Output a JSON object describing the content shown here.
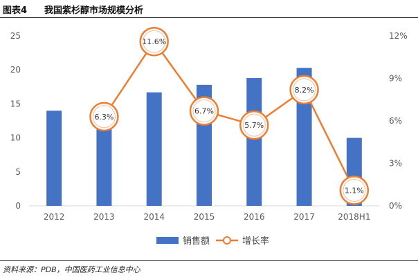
{
  "header": {
    "figure_label": "图表4",
    "title": "我国紫杉醇市场规模分析"
  },
  "footer": {
    "source": "资料来源：PDB，中国医药工业信息中心"
  },
  "colors": {
    "bar": "#4472c4",
    "line": "#ed7d31",
    "axis_text": "#595959",
    "axis_line": "#d9d9d9"
  },
  "chart_data": {
    "type": "bar",
    "categories": [
      "2012",
      "2013",
      "2014",
      "2015",
      "2016",
      "2017",
      "2018H1"
    ],
    "series": [
      {
        "name": "销售额",
        "type": "bar",
        "axis": "left",
        "values": [
          14.0,
          12.0,
          16.7,
          17.8,
          18.8,
          20.3,
          10.0
        ]
      },
      {
        "name": "增长率",
        "type": "line",
        "axis": "right",
        "values": [
          null,
          6.3,
          11.6,
          6.7,
          5.7,
          8.2,
          1.1
        ],
        "labels": [
          "",
          "6.3%",
          "11.6%",
          "6.7%",
          "5.7%",
          "8.2%",
          "1.1%"
        ]
      }
    ],
    "ylim": [
      0,
      25
    ],
    "yticks": [
      "0",
      "5",
      "10",
      "15",
      "20",
      "25"
    ],
    "ylim_right": [
      0,
      12
    ],
    "yticks_right": [
      "0%",
      "3%",
      "6%",
      "9%",
      "12%"
    ],
    "legend": [
      "销售额",
      "增长率"
    ],
    "legend_position": "bottom",
    "grid": false
  }
}
